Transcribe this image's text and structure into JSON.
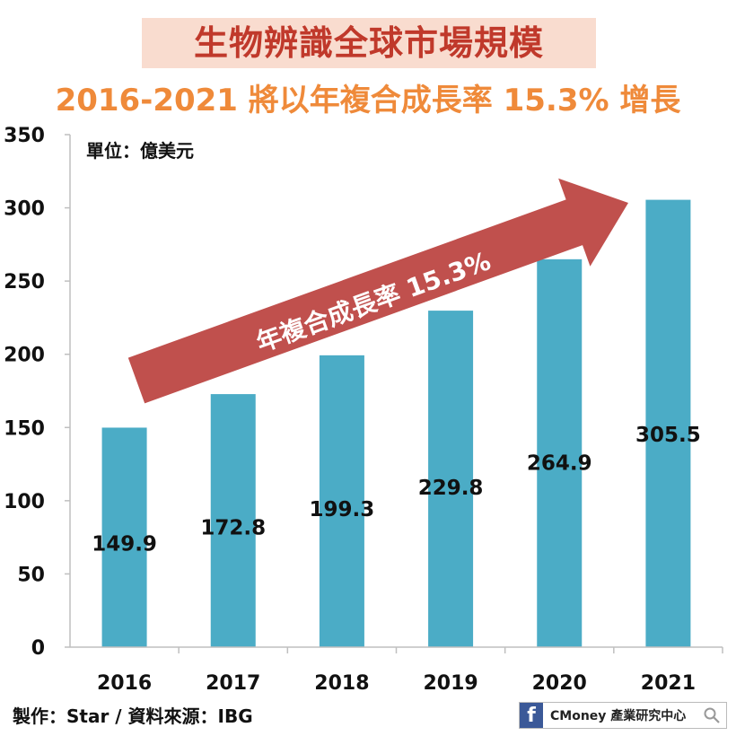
{
  "header": {
    "title": "生物辨識全球市場規模",
    "subtitle": "2016-2021 將以年複合成長率 15.3% 增長"
  },
  "unit_label": "單位：億美元",
  "annotation": "年複合成長率 15.3%",
  "source": "製作：Star / 資料來源：IBG",
  "brand": {
    "icon": "facebook-icon",
    "name": "CMoney 產業研究中心",
    "search_icon": "search-icon"
  },
  "colors": {
    "bar": "#4bacc6",
    "arrow": "#c0504d",
    "title": "#c0392b",
    "subtitle": "#ef8a3a",
    "title_bg": "#f9dccf"
  },
  "chart_data": {
    "type": "bar",
    "categories": [
      "2016",
      "2017",
      "2018",
      "2019",
      "2020",
      "2021"
    ],
    "values": [
      149.9,
      172.8,
      199.3,
      229.8,
      264.9,
      305.5
    ],
    "data_labels": [
      "149.9",
      "172.8",
      "199.3",
      "229.8",
      "264.9",
      "305.5"
    ],
    "ylim": [
      0,
      350
    ],
    "yticks": [
      0,
      50,
      100,
      150,
      200,
      250,
      300,
      350
    ],
    "title": "生物辨識全球市場規模",
    "xlabel": "",
    "ylabel": "",
    "grid": false,
    "legend": "none"
  }
}
